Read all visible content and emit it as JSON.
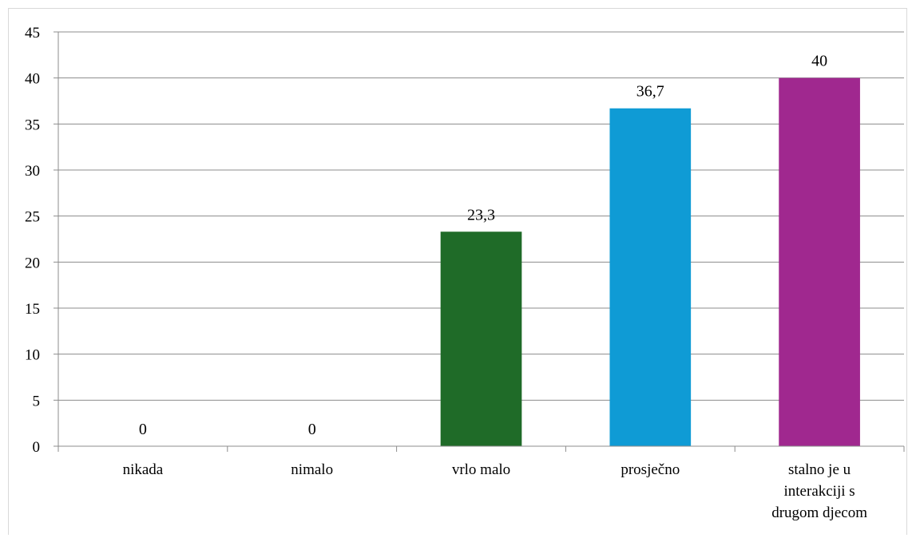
{
  "chart_data": {
    "type": "bar",
    "categories": [
      "nikada",
      "nimalo",
      "vrlo malo",
      "prosječno",
      "stalno je u interakciji s drugom djecom"
    ],
    "category_lines": [
      [
        "nikada"
      ],
      [
        "nimalo"
      ],
      [
        "vrlo malo"
      ],
      [
        "prosječno"
      ],
      [
        "stalno je u",
        "interakciji s",
        "drugom djecom"
      ]
    ],
    "values": [
      0,
      0,
      23.3,
      36.7,
      40
    ],
    "data_labels": [
      "0",
      "0",
      "23,3",
      "36,7",
      "40"
    ],
    "bar_colors": [
      "#1f6b28",
      "#1f6b28",
      "#1f6b28",
      "#0f9bd5",
      "#a0288f"
    ],
    "ylim": [
      0,
      45
    ],
    "yticks": [
      0,
      5,
      10,
      15,
      20,
      25,
      30,
      35,
      40,
      45
    ],
    "grid": true,
    "gridline_color": "#8c8c8c",
    "axis_color": "#8c8c8c",
    "title": "",
    "xlabel": "",
    "ylabel": ""
  }
}
